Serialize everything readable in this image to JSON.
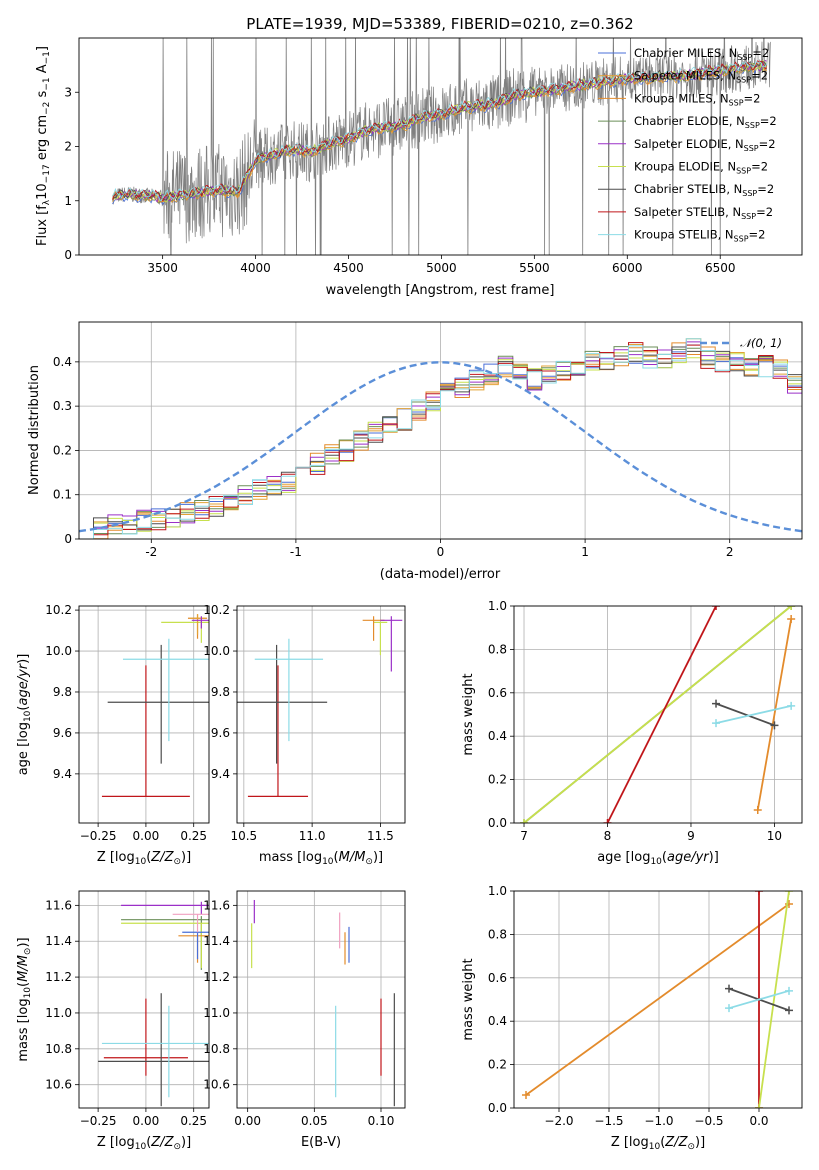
{
  "title": "PLATE=1939, MJD=53389, FIBERID=0210, z=0.362",
  "colors": {
    "chabrier_miles": "#4a6fd8",
    "salpeter_miles": "#e2a235",
    "kroupa_miles": "#e38b2c",
    "chabrier_elodie": "#6b8f59",
    "salpeter_elodie": "#9b30c8",
    "kroupa_elodie": "#c7e04e",
    "chabrier_stelib": "#4d4d4d",
    "salpeter_stelib": "#c0161a",
    "kroupa_stelib": "#8cdbe6",
    "data": "#808080",
    "normal": "#5b8fd8",
    "grid": "#b0b0b0"
  },
  "legend_spectrum": [
    {
      "text": "Chabrier MILES, N",
      "sub": "SSP",
      "tail": "=2",
      "color": "#4a6fd8"
    },
    {
      "text": "Salpeter MILES, N",
      "sub": "SSP",
      "tail": "=2",
      "color": "#e2a235"
    },
    {
      "text": "Kroupa MILES, N",
      "sub": "SSP",
      "tail": "=2",
      "color": "#e38b2c"
    },
    {
      "text": "Chabrier ELODIE, N",
      "sub": "SSP",
      "tail": "=2",
      "color": "#6b8f59"
    },
    {
      "text": "Salpeter ELODIE, N",
      "sub": "SSP",
      "tail": "=2",
      "color": "#9b30c8"
    },
    {
      "text": "Kroupa ELODIE, N",
      "sub": "SSP",
      "tail": "=2",
      "color": "#c7e04e"
    },
    {
      "text": "Chabrier STELIB, N",
      "sub": "SSP",
      "tail": "=2",
      "color": "#4d4d4d"
    },
    {
      "text": "Salpeter STELIB, N",
      "sub": "SSP",
      "tail": "=2",
      "color": "#c0161a"
    },
    {
      "text": "Kroupa STELIB, N",
      "sub": "SSP",
      "tail": "=2",
      "color": "#8cdbe6"
    }
  ],
  "legend_hist": "𝒩(0, 1)",
  "chart_data": [
    {
      "type": "line",
      "panel": "spectrum",
      "title": "PLATE=1939, MJD=53389, FIBERID=0210, z=0.362",
      "xlabel": "wavelength [Angstrom, rest frame]",
      "ylabel": "Flux [f_λ 10^-17 erg cm^-2 s^-1 A^-1]",
      "xlim": [
        3050,
        6940
      ],
      "ylim": [
        0,
        4.0
      ],
      "xticks": [
        3500,
        4000,
        4500,
        5000,
        5500,
        6000,
        6500
      ],
      "yticks": [
        0,
        1,
        2,
        3
      ],
      "model_anchor": {
        "x": [
          3230,
          3300,
          3400,
          3500,
          3600,
          3700,
          3800,
          3900,
          3950,
          4000,
          4100,
          4200,
          4300,
          4400,
          4500,
          4600,
          4700,
          4800,
          4900,
          5000,
          5100,
          5200,
          5300,
          5400,
          5500,
          5600,
          5700,
          5800,
          5900,
          6000,
          6100,
          6200,
          6300,
          6400,
          6500,
          6600,
          6750
        ],
        "y": [
          1.08,
          1.12,
          1.1,
          1.05,
          1.1,
          1.15,
          1.2,
          1.15,
          1.4,
          1.75,
          1.85,
          1.95,
          1.9,
          2.05,
          2.15,
          2.3,
          2.35,
          2.4,
          2.55,
          2.6,
          2.7,
          2.75,
          2.8,
          2.95,
          3.0,
          3.05,
          3.1,
          3.15,
          3.2,
          3.25,
          3.25,
          3.3,
          3.3,
          3.35,
          3.4,
          3.45,
          3.5
        ]
      }
    },
    {
      "type": "bar",
      "panel": "residual-histogram",
      "xlabel": "(data-model)/error",
      "ylabel": "Normed distribution",
      "xlim": [
        -2.5,
        2.5
      ],
      "ylim": [
        0,
        0.49
      ],
      "xticks": [
        -2,
        -1,
        0,
        1,
        2
      ],
      "yticks": [
        0.0,
        0.1,
        0.2,
        0.3,
        0.4
      ],
      "bin_edges_start": -2.5,
      "bin_width": 0.1,
      "values": [
        0.02,
        0.025,
        0.03,
        0.035,
        0.04,
        0.045,
        0.05,
        0.06,
        0.065,
        0.075,
        0.09,
        0.1,
        0.11,
        0.12,
        0.13,
        0.15,
        0.17,
        0.19,
        0.2,
        0.22,
        0.24,
        0.26,
        0.27,
        0.29,
        0.31,
        0.33,
        0.34,
        0.36,
        0.37,
        0.39,
        0.38,
        0.36,
        0.37,
        0.38,
        0.39,
        0.4,
        0.4,
        0.41,
        0.42,
        0.41,
        0.41,
        0.42,
        0.43,
        0.41,
        0.4,
        0.4,
        0.39,
        0.39,
        0.38,
        0.35,
        0.33,
        0.31,
        0.28,
        0.27,
        0.27,
        0.25,
        0.23,
        0.22,
        0.2,
        0.19,
        0.17,
        0.16,
        0.14,
        0.13,
        0.12,
        0.1,
        0.09,
        0.08,
        0.07,
        0.06,
        0.055,
        0.05,
        0.045,
        0.04,
        0.035
      ],
      "normal": {
        "name": "𝒩(0, 1)",
        "mean": 0,
        "sigma": 1
      }
    },
    {
      "type": "scatter",
      "panel": "age-vs-Z",
      "xlabel": "Z [log10(Z/Z⊙)]",
      "ylabel": "age  [log10(age/yr)]",
      "xlim": [
        -0.35,
        0.33
      ],
      "ylim": [
        9.16,
        10.22
      ],
      "xticks": [
        "−0.25",
        "0.00",
        "0.25"
      ],
      "yticks": [
        "9.4",
        "9.6",
        "9.8",
        "10.0",
        "10.2"
      ],
      "points": [
        {
          "x": 0.0,
          "y": 9.29,
          "xerr": 0.23,
          "yerr": [
            0.0,
            0.64
          ],
          "color": "#c0161a"
        },
        {
          "x": 0.08,
          "y": 9.75,
          "xerr": 0.28,
          "yerr": [
            0.3,
            0.28
          ],
          "color": "#4d4d4d"
        },
        {
          "x": 0.12,
          "y": 9.96,
          "xerr": 0.24,
          "yerr": [
            0.4,
            0.1
          ],
          "color": "#8cdbe6"
        },
        {
          "x": 0.29,
          "y": 10.14,
          "xerr": 0.21,
          "yerr": [
            0.1,
            0.02
          ],
          "color": "#c7e04e"
        },
        {
          "x": 0.27,
          "y": 10.16,
          "xerr": 0.05,
          "yerr": [
            0.1,
            0.02
          ],
          "color": "#e38b2c"
        },
        {
          "x": 0.27,
          "y": 10.16,
          "xerr": 0.04,
          "yerr": [
            0.08,
            0.02
          ],
          "color": "#e2a235"
        },
        {
          "x": 0.29,
          "y": 10.15,
          "xerr": 0.05,
          "yerr": [
            0.04,
            0.02
          ],
          "color": "#9b30c8"
        }
      ]
    },
    {
      "type": "scatter",
      "panel": "age-vs-mass",
      "xlabel": "mass [log10(M/M⊙)]",
      "xlim": [
        10.45,
        11.68
      ],
      "ylim": [
        9.16,
        10.22
      ],
      "xticks": [
        "10.5",
        "11.0",
        "11.5"
      ],
      "yticks": [
        "9.4",
        "9.6",
        "9.8",
        "10.0",
        "10.2"
      ],
      "points": [
        {
          "x": 10.75,
          "y": 9.29,
          "xerr": 0.22,
          "yerr": [
            0.0,
            0.64
          ],
          "color": "#c0161a"
        },
        {
          "x": 10.74,
          "y": 9.75,
          "xerr": 0.37,
          "yerr": [
            0.3,
            0.28
          ],
          "color": "#4d4d4d"
        },
        {
          "x": 10.83,
          "y": 9.96,
          "xerr": 0.25,
          "yerr": [
            0.4,
            0.1
          ],
          "color": "#8cdbe6"
        },
        {
          "x": 11.5,
          "y": 10.14,
          "xerr": 0.05,
          "yerr": [
            0.16,
            0.0
          ],
          "color": "#c7e04e"
        },
        {
          "x": 11.45,
          "y": 10.15,
          "xerr": 0.08,
          "yerr": [
            0.1,
            0.02
          ],
          "color": "#e38b2c"
        },
        {
          "x": 11.58,
          "y": 10.15,
          "xerr": 0.08,
          "yerr": [
            0.25,
            0.02
          ],
          "color": "#9b30c8"
        }
      ]
    },
    {
      "type": "line",
      "panel": "mass-weight-vs-age",
      "xlabel": "age  [log10(age/yr)]",
      "ylabel": "mass weight",
      "xlim": [
        6.88,
        10.33
      ],
      "ylim": [
        0,
        1
      ],
      "xticks": [
        "7",
        "8",
        "9",
        "10"
      ],
      "yticks": [
        "0.0",
        "0.2",
        "0.4",
        "0.6",
        "0.8",
        "1.0"
      ],
      "series": [
        {
          "x": [
            7.0,
            10.2
          ],
          "y": [
            0.0,
            1.0
          ],
          "color": "#6b8f59"
        },
        {
          "x": [
            7.0,
            10.2
          ],
          "y": [
            0.0,
            1.0
          ],
          "color": "#c7e04e"
        },
        {
          "x": [
            8.0,
            9.3
          ],
          "y": [
            0.0,
            1.0
          ],
          "color": "#c0161a"
        },
        {
          "x": [
            9.8,
            10.2
          ],
          "y": [
            0.06,
            0.94
          ],
          "color": "#e38b2c"
        },
        {
          "x": [
            9.3,
            10.0
          ],
          "y": [
            0.55,
            0.45
          ],
          "color": "#4d4d4d"
        },
        {
          "x": [
            9.3,
            10.2
          ],
          "y": [
            0.46,
            0.54
          ],
          "color": "#8cdbe6"
        }
      ]
    },
    {
      "type": "scatter",
      "panel": "mass-vs-Z",
      "xlabel": "Z [log10(Z/Z⊙)]",
      "ylabel": "mass [log10(M/M⊙)]",
      "xlim": [
        -0.35,
        0.33
      ],
      "ylim": [
        10.47,
        11.68
      ],
      "xticks": [
        "−0.25",
        "0.00",
        "0.25"
      ],
      "yticks": [
        "10.6",
        "10.8",
        "11.0",
        "11.2",
        "11.4",
        "11.6"
      ],
      "points": [
        {
          "x": 0.0,
          "y": 10.75,
          "xerr": 0.22,
          "yerr": [
            0.1,
            0.33
          ],
          "color": "#c0161a"
        },
        {
          "x": 0.08,
          "y": 10.73,
          "xerr": 0.33,
          "yerr": [
            0.25,
            0.38
          ],
          "color": "#4d4d4d"
        },
        {
          "x": 0.12,
          "y": 10.83,
          "xerr": 0.35,
          "yerr": [
            0.3,
            0.21
          ],
          "color": "#8cdbe6"
        },
        {
          "x": 0.29,
          "y": 11.6,
          "xerr": 0.42,
          "yerr": [
            0.05,
            0.02
          ],
          "color": "#9b30c8"
        },
        {
          "x": 0.29,
          "y": 11.52,
          "xerr": 0.42,
          "yerr": [
            0.28,
            0.02
          ],
          "color": "#6b8f59"
        },
        {
          "x": 0.29,
          "y": 11.5,
          "xerr": 0.42,
          "yerr": [
            0.25,
            0.0
          ],
          "color": "#c7e04e"
        },
        {
          "x": 0.27,
          "y": 11.43,
          "xerr": 0.1,
          "yerr": [
            0.15,
            0.0
          ],
          "color": "#e38b2c"
        },
        {
          "x": 0.27,
          "y": 11.45,
          "xerr": 0.08,
          "yerr": [
            0.15,
            0.0
          ],
          "color": "#4a6fd8"
        },
        {
          "x": 0.27,
          "y": 11.55,
          "xerr": 0.13,
          "yerr": [
            0.1,
            0.0
          ],
          "color": "#f0a0c0"
        }
      ]
    },
    {
      "type": "scatter",
      "panel": "mass-vs-EBV",
      "xlabel": "E(B-V)",
      "xlim": [
        -0.008,
        0.118
      ],
      "ylim": [
        10.47,
        11.68
      ],
      "xticks": [
        "0.00",
        "0.05",
        "0.10"
      ],
      "yticks": [
        "10.6",
        "10.8",
        "11.0",
        "11.2",
        "11.4",
        "11.6"
      ],
      "points": [
        {
          "x": 0.1,
          "y": 10.75,
          "yerr": [
            0.1,
            0.33
          ],
          "color": "#c0161a"
        },
        {
          "x": 0.11,
          "y": 10.73,
          "yerr": [
            0.25,
            0.38
          ],
          "color": "#4d4d4d"
        },
        {
          "x": 0.066,
          "y": 10.83,
          "yerr": [
            0.3,
            0.21
          ],
          "color": "#8cdbe6"
        },
        {
          "x": 0.005,
          "y": 11.55,
          "yerr": [
            0.05,
            0.08
          ],
          "color": "#9b30c8"
        },
        {
          "x": 0.003,
          "y": 11.4,
          "yerr": [
            0.15,
            0.1
          ],
          "color": "#c7e04e"
        },
        {
          "x": 0.073,
          "y": 11.4,
          "yerr": [
            0.13,
            0.05
          ],
          "color": "#e38b2c"
        },
        {
          "x": 0.076,
          "y": 11.38,
          "yerr": [
            0.1,
            0.1
          ],
          "color": "#4a6fd8"
        },
        {
          "x": 0.069,
          "y": 11.46,
          "yerr": [
            0.1,
            0.1
          ],
          "color": "#f0a0c0"
        }
      ]
    },
    {
      "type": "line",
      "panel": "mass-weight-vs-Z",
      "xlabel": "Z [log10(Z/Z⊙)]",
      "ylabel": "mass weight",
      "xlim": [
        -2.45,
        0.43
      ],
      "ylim": [
        0,
        1
      ],
      "xticks": [
        "−2.0",
        "−1.5",
        "−1.0",
        "−0.5",
        "0.0"
      ],
      "yticks": [
        "0.0",
        "0.2",
        "0.4",
        "0.6",
        "0.8",
        "1.0"
      ],
      "series": [
        {
          "x": [
            -2.33,
            0.3
          ],
          "y": [
            0.06,
            0.94
          ],
          "color": "#e38b2c"
        },
        {
          "x": [
            0.0,
            0.0
          ],
          "y": [
            0.0,
            1.0
          ],
          "color": "#c0161a"
        },
        {
          "x": [
            0.0,
            0.3
          ],
          "y": [
            0.0,
            1.0
          ],
          "color": "#c7e04e"
        },
        {
          "x": [
            -0.3,
            0.3
          ],
          "y": [
            0.55,
            0.45
          ],
          "color": "#4d4d4d"
        },
        {
          "x": [
            -0.3,
            0.3
          ],
          "y": [
            0.46,
            0.54
          ],
          "color": "#8cdbe6"
        }
      ]
    }
  ]
}
